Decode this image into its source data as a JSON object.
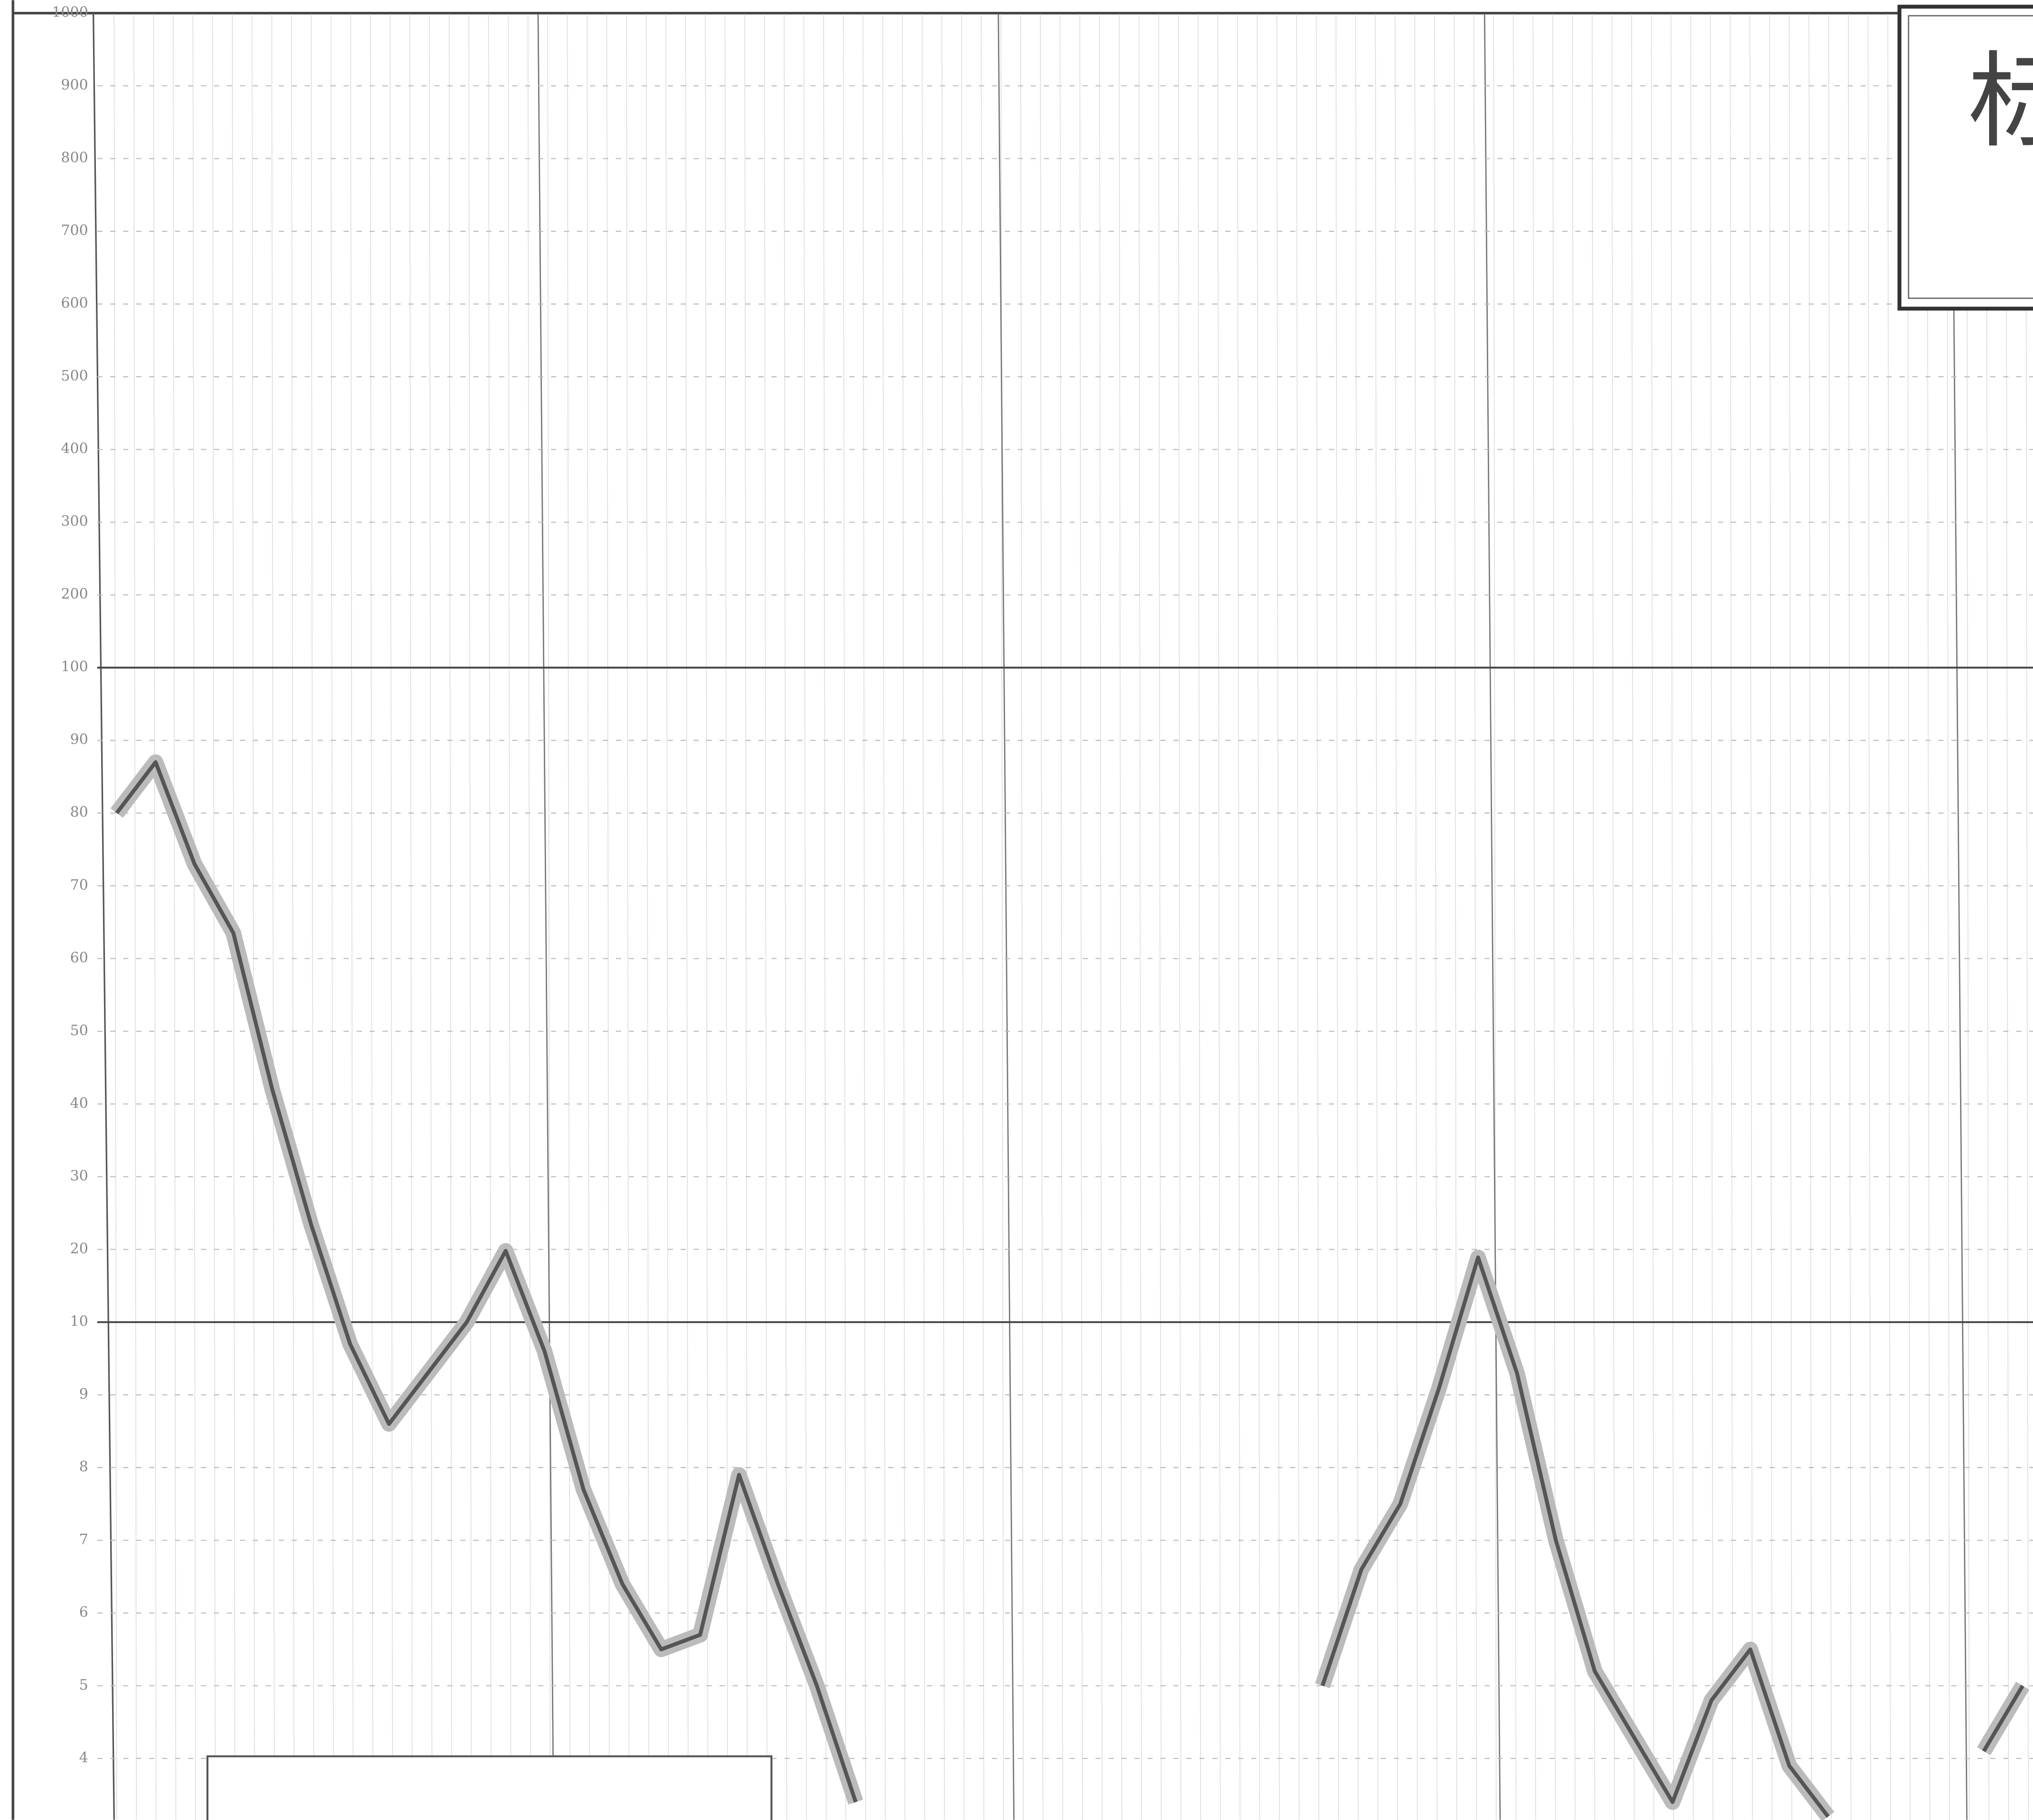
{
  "chart_data": {
    "type": "line",
    "title": "标",
    "yscale": "decade",
    "ylim": [
      3.2,
      1000
    ],
    "yticks": [
      1000,
      900,
      800,
      700,
      600,
      500,
      400,
      300,
      200,
      100,
      90,
      80,
      70,
      60,
      50,
      40,
      30,
      20,
      10,
      9,
      8,
      7,
      6,
      5,
      4
    ],
    "grid": true,
    "color": "#555555",
    "categories": [
      null,
      null,
      null,
      null,
      null,
      null,
      null,
      null,
      null,
      null,
      null,
      null,
      null,
      null,
      null,
      null,
      null,
      null,
      null,
      null,
      null,
      null,
      null,
      null,
      null,
      null,
      null,
      null,
      null,
      null,
      null,
      null,
      null,
      null,
      null,
      null,
      null,
      null,
      null,
      null,
      null,
      null,
      null,
      null,
      null,
      null,
      null,
      null,
      null,
      null
    ],
    "values": [
      80,
      87,
      73,
      63.5,
      42,
      23.4,
      9.7,
      8.6,
      9.3,
      10,
      19.8,
      9.6,
      7.7,
      6.4,
      5.5,
      5.7,
      7.9,
      6.4,
      5.0,
      3.4,
      null,
      null,
      null,
      null,
      null,
      null,
      null,
      null,
      null,
      null,
      null,
      5.0,
      6.6,
      7.5,
      9.1,
      18.9,
      9.3,
      7.0,
      5.2,
      4.3,
      3.4,
      4.8,
      5.5,
      3.9,
      3.2,
      null,
      null,
      null,
      4.1,
      5.0
    ]
  }
}
